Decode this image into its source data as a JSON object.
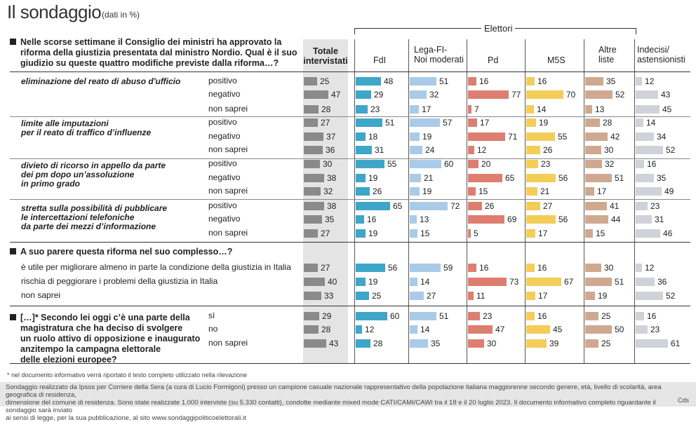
{
  "title": "Il sondaggio",
  "title_sub": "(dati in %)",
  "elettori_label": "Elettori",
  "columns": [
    {
      "label_1": "Totale",
      "label_2": "intervistati",
      "color": "#8a8a8a"
    },
    {
      "label_1": "FdI",
      "label_2": "",
      "color": "#3ea6c8"
    },
    {
      "label_1": "Lega-FI-",
      "label_2": "Noi moderati",
      "color": "#a9cbe8"
    },
    {
      "label_1": "Pd",
      "label_2": "",
      "color": "#de7e70"
    },
    {
      "label_1": "M5S",
      "label_2": "",
      "color": "#f3cd57"
    },
    {
      "label_1": "Altre",
      "label_2": "liste",
      "color": "#cfa98f"
    },
    {
      "label_1": "Indecisi/",
      "label_2": "astensionisti",
      "color": "#cfd2d8"
    }
  ],
  "q1": {
    "line1": "Nelle scorse settimane il Consiglio dei ministri ha approvato la",
    "line2": "riforma della giustizia presentata dal ministro Nordio. Qual è il suo",
    "line3": "giudizio su queste quattro modifiche previste dalla riforma…?"
  },
  "q2": {
    "text": "A suo parere questa riforma nel suo complesso…?"
  },
  "q3": {
    "line1": "[…]* Secondo lei oggi c’è una parte della",
    "line2": "magistratura che ha deciso di svolgere",
    "line3": "un ruolo attivo di opposizione e inaugurato",
    "line4": "anzitempo la campagna elettorale",
    "line5": "delle elezioni europee?"
  },
  "topics": [
    {
      "line1": "eliminazione del reato di abuso d'ufficio",
      "line2": "",
      "line3": ""
    },
    {
      "line1": "limite alle imputazioni",
      "line2": "per il reato di traffico d’influenze",
      "line3": ""
    },
    {
      "line1": "divieto di ricorso in appello da parte",
      "line2": "dei pm dopo un’assoluzione",
      "line3": "in primo grado"
    },
    {
      "line1": "stretta sulla possibilità di pubblicare",
      "line2": "le intercettazioni telefoniche",
      "line3": "da parte dei mezzi d’informazione"
    }
  ],
  "footnote": "* nel documento informativo verrà riportato il testo completo utilizzato nella rilevazione",
  "footer_line1": "Sondaggio realizzato da Ipsos per Corriere della Sera (a cura di Lucio Formigoni) presso un campione casuale nazionale rappresentativo della popolazione italiana maggiorenne secondo genere, età, livello di scolarità, area geografica di residenza,",
  "footer_line2": "dimensione del comune di residenza. Sono state realizzate 1.000 interviste (su 5.330 contatti), condotte mediante mixed mode CATI/CAMI/CAWI tra il 18 e il 20 luglio 2023. Il documento informativo completo riguardante il sondaggio sarà inviato",
  "footer_line3": "ai sensi di legge, per la sua pubblicazione, al sito www.sondaggipoliticoelettorali.it",
  "credit": "Cds",
  "chart_data": {
    "type": "bar",
    "title": "Il sondaggio (dati in %)",
    "series_names": [
      "Totale intervistati",
      "FdI",
      "Lega-FI-Noi moderati",
      "Pd",
      "M5S",
      "Altre liste",
      "Indecisi/astensionisti"
    ],
    "rows": [
      {
        "label": "positivo",
        "values": [
          25,
          48,
          51,
          16,
          16,
          35,
          12
        ]
      },
      {
        "label": "negativo",
        "values": [
          47,
          29,
          32,
          77,
          70,
          52,
          43
        ]
      },
      {
        "label": "non saprei",
        "values": [
          28,
          23,
          17,
          7,
          14,
          13,
          45
        ]
      },
      {
        "label": "positivo",
        "values": [
          27,
          51,
          57,
          17,
          19,
          28,
          14
        ]
      },
      {
        "label": "negativo",
        "values": [
          37,
          18,
          19,
          71,
          55,
          42,
          34
        ]
      },
      {
        "label": "non saprei",
        "values": [
          36,
          31,
          24,
          12,
          26,
          30,
          52
        ]
      },
      {
        "label": "positivo",
        "values": [
          30,
          55,
          60,
          20,
          23,
          32,
          16
        ]
      },
      {
        "label": "negativo",
        "values": [
          38,
          19,
          21,
          65,
          56,
          51,
          35
        ]
      },
      {
        "label": "non saprei",
        "values": [
          32,
          26,
          19,
          15,
          21,
          17,
          49
        ]
      },
      {
        "label": "positivo",
        "values": [
          38,
          65,
          72,
          26,
          27,
          41,
          23
        ]
      },
      {
        "label": "negativo",
        "values": [
          35,
          16,
          13,
          69,
          56,
          44,
          31
        ]
      },
      {
        "label": "non saprei",
        "values": [
          27,
          19,
          15,
          5,
          17,
          15,
          46
        ]
      },
      {
        "label": "è utile per migliorare almeno in parte la condizione della giustizia in Italia",
        "values": [
          27,
          56,
          59,
          16,
          16,
          30,
          12
        ]
      },
      {
        "label": "rischia di peggiorare i problemi della giustizia in Italia",
        "values": [
          40,
          19,
          14,
          73,
          67,
          51,
          36
        ]
      },
      {
        "label": "non saprei",
        "values": [
          33,
          25,
          27,
          11,
          17,
          19,
          52
        ]
      },
      {
        "label": "sì",
        "values": [
          29,
          60,
          51,
          23,
          16,
          25,
          16
        ]
      },
      {
        "label": "no",
        "values": [
          28,
          12,
          14,
          47,
          45,
          50,
          23
        ]
      },
      {
        "label": "non saprei",
        "values": [
          43,
          28,
          35,
          30,
          39,
          25,
          61
        ]
      }
    ],
    "xlim": [
      0,
      100
    ]
  }
}
